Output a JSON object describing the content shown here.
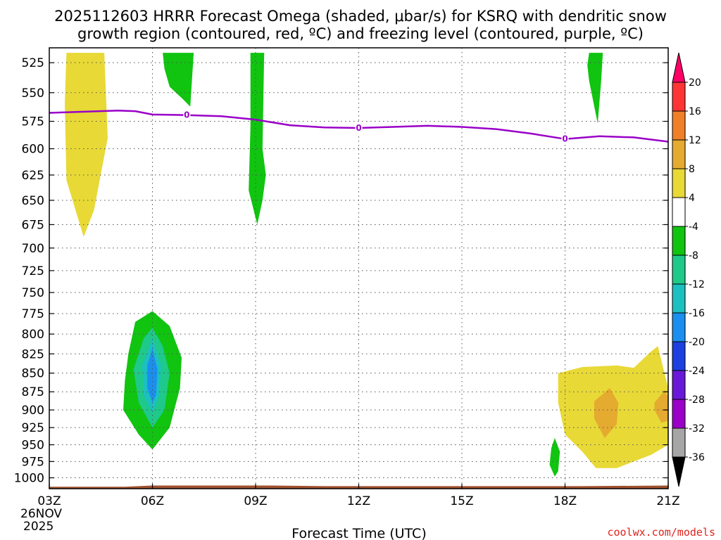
{
  "chart_data": {
    "type": "contour",
    "title_lines": [
      "2025112603 HRRR Forecast Omega (shaded, μbar/s) for KSRQ with dendritic snow",
      "growth region (contoured, red, ºC) and freezing level (contoured, purple, ºC)"
    ],
    "xlabel": "Forecast Time (UTC)",
    "credit": "coolwx.com/models",
    "x_ticks": [
      {
        "hour": 0,
        "label": "03Z"
      },
      {
        "hour": 3,
        "label": "06Z"
      },
      {
        "hour": 6,
        "label": "09Z"
      },
      {
        "hour": 9,
        "label": "12Z"
      },
      {
        "hour": 12,
        "label": "15Z"
      },
      {
        "hour": 15,
        "label": "18Z"
      },
      {
        "hour": 18,
        "label": "21Z"
      }
    ],
    "x_date_lines": [
      "26NOV",
      "2025"
    ],
    "xlim": [
      0,
      18
    ],
    "y_ticks": [
      525,
      550,
      575,
      600,
      625,
      650,
      675,
      700,
      725,
      750,
      775,
      800,
      825,
      850,
      875,
      900,
      925,
      950,
      975,
      1000
    ],
    "ylim": [
      1017,
      513
    ],
    "y_scale": "log-pressure",
    "colorbar": {
      "labels": [
        "20",
        "16",
        "12",
        "8",
        "4",
        "-4",
        "-8",
        "-12",
        "-16",
        "-20",
        "-24",
        "-28",
        "-32",
        "-36"
      ],
      "colors": [
        "#ff0066",
        "#ff3535",
        "#f07f2a",
        "#e5aa30",
        "#e8d936",
        "#ffffff",
        "#10c410",
        "#1ec98a",
        "#1cc0c0",
        "#1a8fef",
        "#1c3fe0",
        "#6a18d8",
        "#9a00c8",
        "#a6a6a6",
        "#000000"
      ]
    },
    "freezing_level": {
      "label": "0",
      "color": "#9a00c8",
      "points": [
        {
          "h": 0.0,
          "p": 567.5
        },
        {
          "h": 1.0,
          "p": 566.5
        },
        {
          "h": 2.0,
          "p": 565.5
        },
        {
          "h": 2.5,
          "p": 566.0
        },
        {
          "h": 3.0,
          "p": 569.0
        },
        {
          "h": 4.0,
          "p": 569.5
        },
        {
          "h": 5.0,
          "p": 570.5
        },
        {
          "h": 6.0,
          "p": 573.5
        },
        {
          "h": 7.0,
          "p": 578.5
        },
        {
          "h": 8.0,
          "p": 580.5
        },
        {
          "h": 9.0,
          "p": 581.0
        },
        {
          "h": 10.0,
          "p": 580.0
        },
        {
          "h": 11.0,
          "p": 579.0
        },
        {
          "h": 12.0,
          "p": 580.0
        },
        {
          "h": 13.0,
          "p": 582.0
        },
        {
          "h": 14.0,
          "p": 586.0
        },
        {
          "h": 15.0,
          "p": 591.0
        },
        {
          "h": 16.0,
          "p": 588.5
        },
        {
          "h": 17.0,
          "p": 589.5
        },
        {
          "h": 18.0,
          "p": 593.5
        }
      ],
      "label_hours": [
        4,
        9,
        15
      ]
    },
    "omega_regions": [
      {
        "value_range": "4 to 8",
        "color": "#e8d936",
        "points": [
          {
            "h": 0.5,
            "p": 517
          },
          {
            "h": 1.6,
            "p": 517
          },
          {
            "h": 1.7,
            "p": 590
          },
          {
            "h": 1.3,
            "p": 660
          },
          {
            "h": 1.0,
            "p": 688
          },
          {
            "h": 0.5,
            "p": 630
          },
          {
            "h": 0.45,
            "p": 560
          }
        ]
      },
      {
        "value_range": "-8 to -4",
        "color": "#10c410",
        "points": [
          {
            "h": 3.3,
            "p": 517
          },
          {
            "h": 4.2,
            "p": 517
          },
          {
            "h": 4.1,
            "p": 562
          },
          {
            "h": 3.9,
            "p": 556
          },
          {
            "h": 3.5,
            "p": 545
          },
          {
            "h": 3.35,
            "p": 530
          }
        ]
      },
      {
        "value_range": "-8 to -4",
        "color": "#10c410",
        "points": [
          {
            "h": 5.85,
            "p": 517
          },
          {
            "h": 6.25,
            "p": 517
          },
          {
            "h": 6.2,
            "p": 600
          },
          {
            "h": 6.3,
            "p": 625
          },
          {
            "h": 6.2,
            "p": 650
          },
          {
            "h": 6.05,
            "p": 675
          },
          {
            "h": 5.8,
            "p": 640
          },
          {
            "h": 5.85,
            "p": 580
          }
        ]
      },
      {
        "value_range": "-8 to -4",
        "color": "#10c410",
        "points": [
          {
            "h": 15.7,
            "p": 517
          },
          {
            "h": 16.1,
            "p": 517
          },
          {
            "h": 16.05,
            "p": 540
          },
          {
            "h": 15.95,
            "p": 577
          },
          {
            "h": 15.7,
            "p": 540
          },
          {
            "h": 15.65,
            "p": 527
          }
        ]
      },
      {
        "value_range": "-8 to -4",
        "color": "#10c410",
        "points": [
          {
            "h": 2.3,
            "p": 825
          },
          {
            "h": 2.5,
            "p": 785
          },
          {
            "h": 3.0,
            "p": 772
          },
          {
            "h": 3.5,
            "p": 790
          },
          {
            "h": 3.85,
            "p": 830
          },
          {
            "h": 3.8,
            "p": 870
          },
          {
            "h": 3.5,
            "p": 925
          },
          {
            "h": 3.0,
            "p": 957
          },
          {
            "h": 2.6,
            "p": 935
          },
          {
            "h": 2.15,
            "p": 900
          },
          {
            "h": 2.2,
            "p": 860
          }
        ]
      },
      {
        "value_range": "-12 to -8",
        "color": "#1ec98a",
        "points": [
          {
            "h": 2.45,
            "p": 845
          },
          {
            "h": 2.75,
            "p": 805
          },
          {
            "h": 3.0,
            "p": 792
          },
          {
            "h": 3.3,
            "p": 815
          },
          {
            "h": 3.5,
            "p": 850
          },
          {
            "h": 3.35,
            "p": 900
          },
          {
            "h": 3.0,
            "p": 925
          },
          {
            "h": 2.6,
            "p": 890
          }
        ]
      },
      {
        "value_range": "-16 to -12",
        "color": "#1cc0c0",
        "points": [
          {
            "h": 2.7,
            "p": 840
          },
          {
            "h": 3.0,
            "p": 805
          },
          {
            "h": 3.25,
            "p": 840
          },
          {
            "h": 3.2,
            "p": 880
          },
          {
            "h": 3.0,
            "p": 905
          },
          {
            "h": 2.75,
            "p": 880
          }
        ]
      },
      {
        "value_range": "-20 to -16",
        "color": "#1a8fef",
        "points": [
          {
            "h": 2.85,
            "p": 840
          },
          {
            "h": 3.0,
            "p": 818
          },
          {
            "h": 3.15,
            "p": 845
          },
          {
            "h": 3.1,
            "p": 880
          },
          {
            "h": 3.0,
            "p": 890
          },
          {
            "h": 2.85,
            "p": 870
          }
        ]
      },
      {
        "value_range": "-8 to -4",
        "color": "#10c410",
        "points": [
          {
            "h": 14.7,
            "p": 940
          },
          {
            "h": 14.85,
            "p": 960
          },
          {
            "h": 14.8,
            "p": 990
          },
          {
            "h": 14.7,
            "p": 998
          },
          {
            "h": 14.55,
            "p": 980
          },
          {
            "h": 14.6,
            "p": 955
          }
        ]
      },
      {
        "value_range": "4 to 8",
        "color": "#e8d936",
        "points": [
          {
            "h": 14.8,
            "p": 850
          },
          {
            "h": 15.5,
            "p": 842
          },
          {
            "h": 16.5,
            "p": 840
          },
          {
            "h": 17.0,
            "p": 843
          },
          {
            "h": 17.5,
            "p": 822
          },
          {
            "h": 17.7,
            "p": 815
          },
          {
            "h": 18.0,
            "p": 870
          },
          {
            "h": 18.3,
            "p": 895
          },
          {
            "h": 18.0,
            "p": 950
          },
          {
            "h": 17.5,
            "p": 965
          },
          {
            "h": 16.5,
            "p": 985
          },
          {
            "h": 15.9,
            "p": 985
          },
          {
            "h": 15.5,
            "p": 960
          },
          {
            "h": 15.0,
            "p": 935
          },
          {
            "h": 14.8,
            "p": 890
          }
        ]
      },
      {
        "value_range": "8 to 12",
        "color": "#e5aa30",
        "points": [
          {
            "h": 15.85,
            "p": 888
          },
          {
            "h": 16.3,
            "p": 870
          },
          {
            "h": 16.55,
            "p": 890
          },
          {
            "h": 16.5,
            "p": 920
          },
          {
            "h": 16.15,
            "p": 940
          },
          {
            "h": 15.85,
            "p": 912
          }
        ]
      },
      {
        "value_range": "8 to 12",
        "color": "#e5aa30",
        "points": [
          {
            "h": 17.6,
            "p": 890
          },
          {
            "h": 17.9,
            "p": 873
          },
          {
            "h": 18.1,
            "p": 892
          },
          {
            "h": 18.0,
            "p": 915
          },
          {
            "h": 17.8,
            "p": 918
          },
          {
            "h": 17.6,
            "p": 900
          }
        ]
      }
    ],
    "terrain": {
      "color": "#a0522d",
      "points": [
        {
          "h": 0,
          "p": 1014
        },
        {
          "h": 2.2,
          "p": 1014
        },
        {
          "h": 3.0,
          "p": 1012
        },
        {
          "h": 4.5,
          "p": 1012
        },
        {
          "h": 6.5,
          "p": 1012
        },
        {
          "h": 8.0,
          "p": 1013
        },
        {
          "h": 15.5,
          "p": 1013
        },
        {
          "h": 18,
          "p": 1012
        }
      ]
    }
  }
}
